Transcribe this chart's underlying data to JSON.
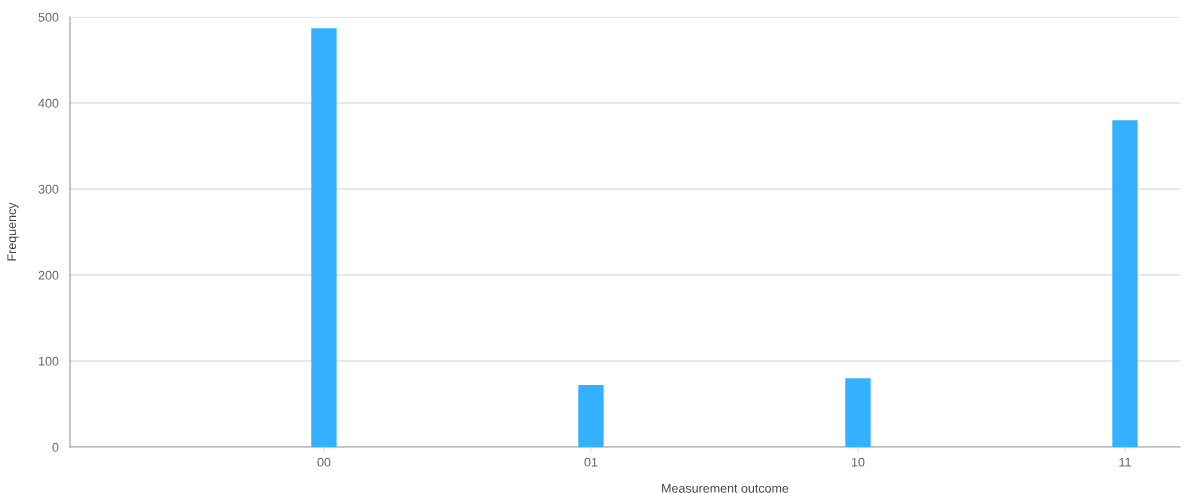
{
  "chart_data": {
    "type": "bar",
    "xlabel": "Measurement outcome",
    "ylabel": "Frequency",
    "categories": [
      "00",
      "01",
      "10",
      "11"
    ],
    "values": [
      487,
      72,
      80,
      380
    ],
    "color": "#33b1ff",
    "ylim": [
      0,
      500
    ],
    "yticks": [
      0,
      100,
      200,
      300,
      400,
      500
    ],
    "grid": "y"
  }
}
